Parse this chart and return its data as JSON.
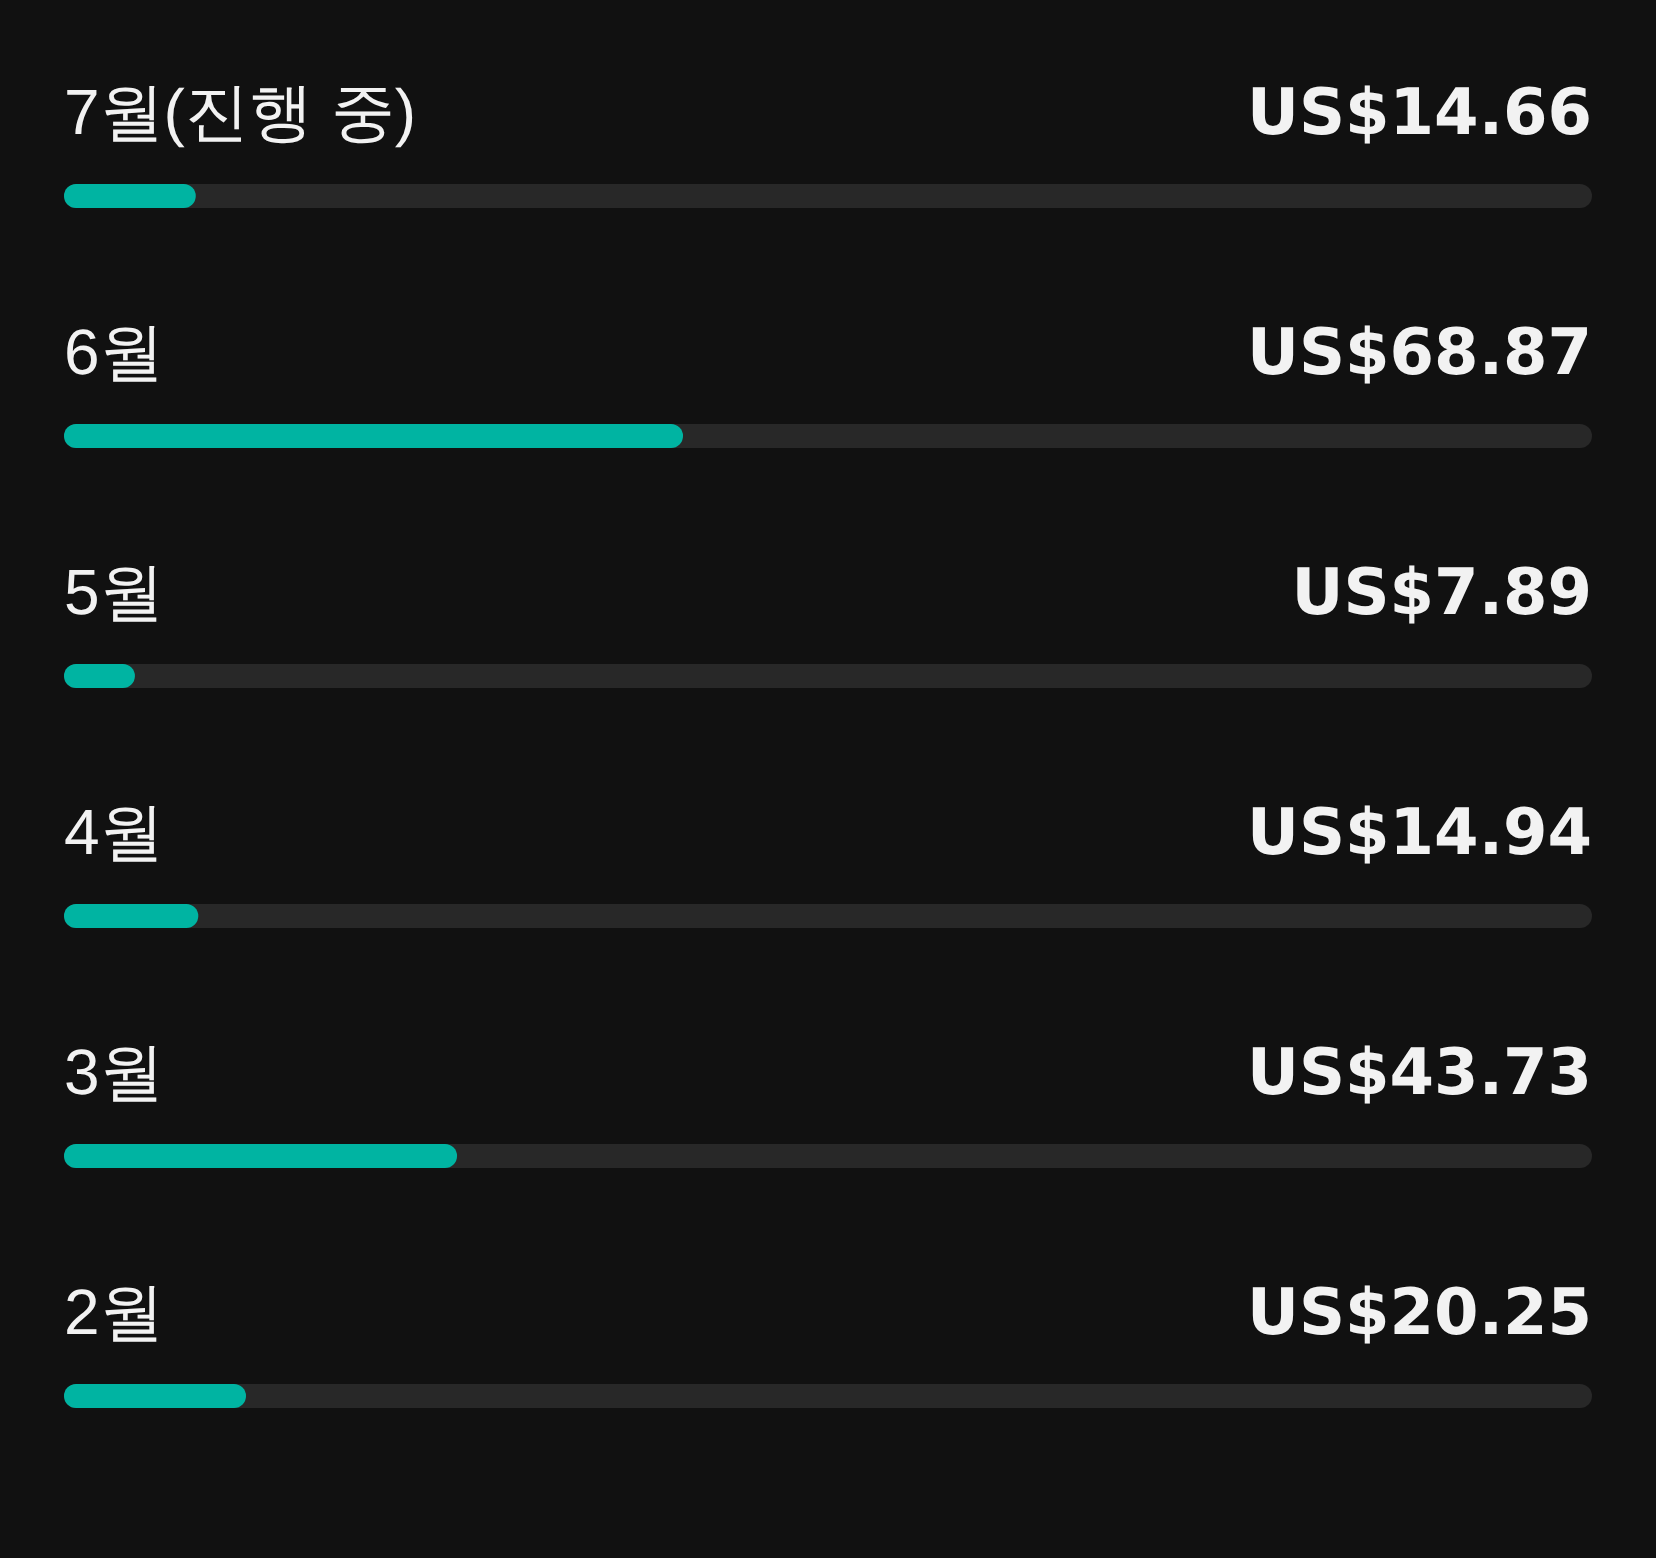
{
  "chart_data": {
    "type": "bar",
    "orientation": "horizontal",
    "categories": [
      "7월(진행 중)",
      "6월",
      "5월",
      "4월",
      "3월",
      "2월"
    ],
    "values": [
      14.66,
      68.87,
      7.89,
      14.94,
      43.73,
      20.25
    ],
    "value_labels": [
      "US$14.66",
      "US$68.87",
      "US$7.89",
      "US$14.94",
      "US$43.73",
      "US$20.25"
    ],
    "color": "#00b4a2",
    "xlim": [
      0,
      170
    ],
    "tick_labels": "y"
  }
}
